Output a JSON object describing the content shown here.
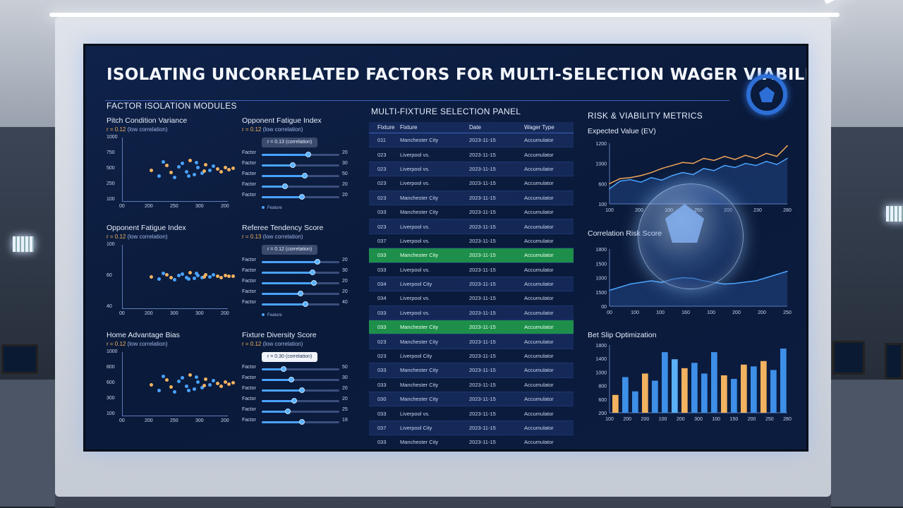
{
  "title": "ISOLATING UNCORRELATED FACTORS FOR MULTI-SELECTION WAGER VIABILITY",
  "left": {
    "section_title": "FACTOR ISOLATION MODULES",
    "scatters": [
      {
        "title": "Pitch Condition Variance",
        "r_label": "r = 0.12",
        "r_note": "(low correlation)",
        "yticks": [
          "1000",
          "750",
          "500",
          "250",
          "100"
        ],
        "xticks": [
          "00",
          "200",
          "250",
          "300",
          "200"
        ]
      },
      {
        "title": "Opponent Fatigue Index",
        "r_label": "r = 0.12",
        "r_note": "(low correlation)",
        "yticks": [
          "100",
          "60",
          "40"
        ],
        "xticks": [
          "00",
          "200",
          "300",
          "300",
          "200"
        ]
      },
      {
        "title": "Home Advantage Bias",
        "r_label": "r = 0.12",
        "r_note": "(low correlation)",
        "yticks": [
          "1000",
          "800",
          "600",
          "300",
          "100"
        ],
        "xticks": [
          "00",
          "200",
          "250",
          "300",
          "200"
        ]
      }
    ],
    "bar_modules": [
      {
        "title": "Opponent Fatigue Index",
        "r_label": "r = 0.12",
        "r_note": "(low correlation)",
        "pill": "r = 0.13 (correlation)",
        "pill_style": "dark",
        "legend": "Feature",
        "rows": [
          {
            "label": "Factor",
            "value": "20",
            "pct": 0.6
          },
          {
            "label": "Factor",
            "value": "30",
            "pct": 0.4
          },
          {
            "label": "Factor",
            "value": "50",
            "pct": 0.55
          },
          {
            "label": "Factor",
            "value": "20",
            "pct": 0.3
          },
          {
            "label": "Factor",
            "value": "20",
            "pct": 0.52
          }
        ]
      },
      {
        "title": "Referee Tendency Score",
        "r_label": "r = 0.13",
        "r_note": "(low correlation)",
        "pill": "r = 0.12 (correlation)",
        "pill_style": "dark",
        "legend": "Feature",
        "rows": [
          {
            "label": "Factor",
            "value": "20",
            "pct": 0.72
          },
          {
            "label": "Factor",
            "value": "30",
            "pct": 0.65
          },
          {
            "label": "Factor",
            "value": "20",
            "pct": 0.67
          },
          {
            "label": "Factor",
            "value": "20",
            "pct": 0.5
          },
          {
            "label": "Factor",
            "value": "40",
            "pct": 0.56
          }
        ]
      },
      {
        "title": "Fixture Diversity Score",
        "r_label": "r = 0.12",
        "r_note": "(low correlation)",
        "pill": "r = 0.30 (correlation)",
        "pill_style": "light",
        "legend": "",
        "rows": [
          {
            "label": "Factor",
            "value": "50",
            "pct": 0.28
          },
          {
            "label": "Factor",
            "value": "30",
            "pct": 0.38
          },
          {
            "label": "Factor",
            "value": "20",
            "pct": 0.52
          },
          {
            "label": "Factor",
            "value": "20",
            "pct": 0.42
          },
          {
            "label": "Factor",
            "value": "25",
            "pct": 0.34
          },
          {
            "label": "Factor",
            "value": "19",
            "pct": 0.52
          }
        ]
      }
    ]
  },
  "table": {
    "section_title": "MULTI-FIXTURE SELECTION PANEL",
    "headers": [
      "Fixture",
      "Fixture",
      "Date",
      "Wager Type"
    ],
    "rows": [
      {
        "id": "011",
        "fixture": "Manchester City",
        "date": "2023-11-15",
        "type": "Accumulator",
        "hl": false
      },
      {
        "id": "023",
        "fixture": "Liverpool vs.",
        "date": "2023-11-15",
        "type": "Accumulator",
        "hl": false
      },
      {
        "id": "023",
        "fixture": "Liverpool vs.",
        "date": "2023-11-15",
        "type": "Accumulator",
        "hl": false
      },
      {
        "id": "023",
        "fixture": "Liverpool vs.",
        "date": "2023-11-15",
        "type": "Accumulator",
        "hl": false
      },
      {
        "id": "023",
        "fixture": "Manchester City",
        "date": "2023-11-15",
        "type": "Accumulator",
        "hl": false
      },
      {
        "id": "033",
        "fixture": "Manchester City",
        "date": "2023-11-15",
        "type": "Accumulator",
        "hl": false
      },
      {
        "id": "023",
        "fixture": "Liverpool vs.",
        "date": "2023-11-15",
        "type": "Accumulator",
        "hl": false
      },
      {
        "id": "037",
        "fixture": "Liverpool vs.",
        "date": "2023-11-15",
        "type": "Accumulator",
        "hl": false
      },
      {
        "id": "033",
        "fixture": "Manchester City",
        "date": "2023-11-15",
        "type": "Accumulator",
        "hl": true
      },
      {
        "id": "033",
        "fixture": "Liverpool vs.",
        "date": "2023-11-15",
        "type": "Accumulator",
        "hl": false
      },
      {
        "id": "034",
        "fixture": "Liverpool City",
        "date": "2023-11-15",
        "type": "Accumulator",
        "hl": false
      },
      {
        "id": "034",
        "fixture": "Liverpool vs.",
        "date": "2023-11-15",
        "type": "Accumulator",
        "hl": false
      },
      {
        "id": "033",
        "fixture": "Liverpool vs.",
        "date": "2023-11-15",
        "type": "Accumulator",
        "hl": false
      },
      {
        "id": "033",
        "fixture": "Manchester City",
        "date": "2023-11-15",
        "type": "Accumulator",
        "hl": true
      },
      {
        "id": "023",
        "fixture": "Manchester City",
        "date": "2023-11-15",
        "type": "Accumulator",
        "hl": false
      },
      {
        "id": "023",
        "fixture": "Liverpool City",
        "date": "2023-11-15",
        "type": "Accumulator",
        "hl": false
      },
      {
        "id": "033",
        "fixture": "Manchester City",
        "date": "2023-11-15",
        "type": "Accumulator",
        "hl": false
      },
      {
        "id": "033",
        "fixture": "Manchester City",
        "date": "2023-11-15",
        "type": "Accumulator",
        "hl": false
      },
      {
        "id": "030",
        "fixture": "Manchester City",
        "date": "2023-11-15",
        "type": "Accumulator",
        "hl": false
      },
      {
        "id": "033",
        "fixture": "Liverpool vs.",
        "date": "2023-11-15",
        "type": "Accumulator",
        "hl": false
      },
      {
        "id": "037",
        "fixture": "Liverpool City",
        "date": "2023-11-15",
        "type": "Accumulator",
        "hl": false
      },
      {
        "id": "033",
        "fixture": "Manchester City",
        "date": "2023-11-15",
        "type": "Accumulator",
        "hl": false
      },
      {
        "id": "029",
        "fixture": "Liverpool City",
        "date": "2023-11-15",
        "type": "Accumulator",
        "hl": false
      },
      {
        "id": "020",
        "fixture": "Liverpool vs.",
        "date": "2023-11-15",
        "type": "Accumulator",
        "hl": false
      },
      {
        "id": "020",
        "fixture": "Manchester City",
        "date": "2023-11-15",
        "type": "Accumulator",
        "hl": false
      }
    ]
  },
  "right": {
    "section_title": "RISK & VIABILITY METRICS",
    "ev": {
      "title": "Expected Value (EV)",
      "yticks": [
        "1200",
        "1000",
        "600",
        "100"
      ],
      "xticks": [
        "100",
        "200",
        "100",
        "250",
        "200",
        "230",
        "280"
      ]
    },
    "corr": {
      "title": "Correlation Risk Score",
      "yticks": [
        "1800",
        "1500",
        "1000",
        "1500",
        "00"
      ],
      "xticks": [
        "00",
        "100",
        "100",
        "160",
        "100",
        "200",
        "200",
        "250"
      ]
    },
    "slip": {
      "title": "Bet Slip Optimization",
      "yticks": [
        "1800",
        "1400",
        "1000",
        "800",
        "600",
        "200"
      ],
      "xticks": [
        "100",
        "200",
        "200",
        "100",
        "200",
        "300",
        "100",
        "150",
        "200",
        "250",
        "280"
      ]
    }
  },
  "chart_data": [
    {
      "type": "line",
      "title": "Expected Value (EV)",
      "x": [
        0,
        1,
        2,
        3,
        4,
        5,
        6,
        7,
        8,
        9,
        10,
        11,
        12,
        13,
        14,
        15,
        16,
        17
      ],
      "series": [
        {
          "values": [
            400,
            500,
            520,
            560,
            620,
            700,
            760,
            820,
            800,
            900,
            860,
            940,
            880,
            960,
            900,
            1000,
            940,
            1150
          ]
        },
        {
          "values": [
            300,
            450,
            480,
            430,
            520,
            470,
            560,
            620,
            580,
            700,
            660,
            760,
            720,
            800,
            760,
            840,
            780,
            900
          ]
        }
      ],
      "ylim": [
        0,
        1200
      ]
    },
    {
      "type": "line",
      "title": "Correlation Risk Score",
      "x": [
        0,
        1,
        2,
        3,
        4,
        5,
        6,
        7,
        8,
        9,
        10,
        11,
        12,
        13,
        14,
        15,
        16,
        17
      ],
      "series": [
        {
          "values": [
            500,
            600,
            700,
            750,
            800,
            750,
            850,
            900,
            880,
            800,
            750,
            700,
            720,
            760,
            800,
            900,
            1000,
            1100
          ]
        }
      ],
      "ylim": [
        0,
        1800
      ]
    },
    {
      "type": "bar",
      "title": "Bet Slip Optimization",
      "categories": [
        "1",
        "2",
        "3",
        "4",
        "5",
        "6",
        "7",
        "8",
        "9",
        "10",
        "11",
        "12",
        "13",
        "14",
        "15",
        "16",
        "17",
        "18"
      ],
      "values": [
        500,
        1000,
        600,
        1100,
        900,
        1700,
        1500,
        1250,
        1400,
        1100,
        1700,
        1050,
        950,
        1350,
        1300,
        1450,
        1200,
        1800
      ],
      "colors": [
        "#f2b25f",
        "#3d8fe8",
        "#3d8fe8",
        "#f2b25f",
        "#3d8fe8",
        "#3d8fe8",
        "#5ab0f5",
        "#f2b25f",
        "#3d8fe8",
        "#3d8fe8",
        "#3d8fe8",
        "#f2b25f",
        "#3d8fe8",
        "#f2b25f",
        "#3d8fe8",
        "#f2b25f",
        "#3d8fe8",
        "#3d8fe8"
      ],
      "ylim": [
        0,
        1900
      ]
    }
  ]
}
